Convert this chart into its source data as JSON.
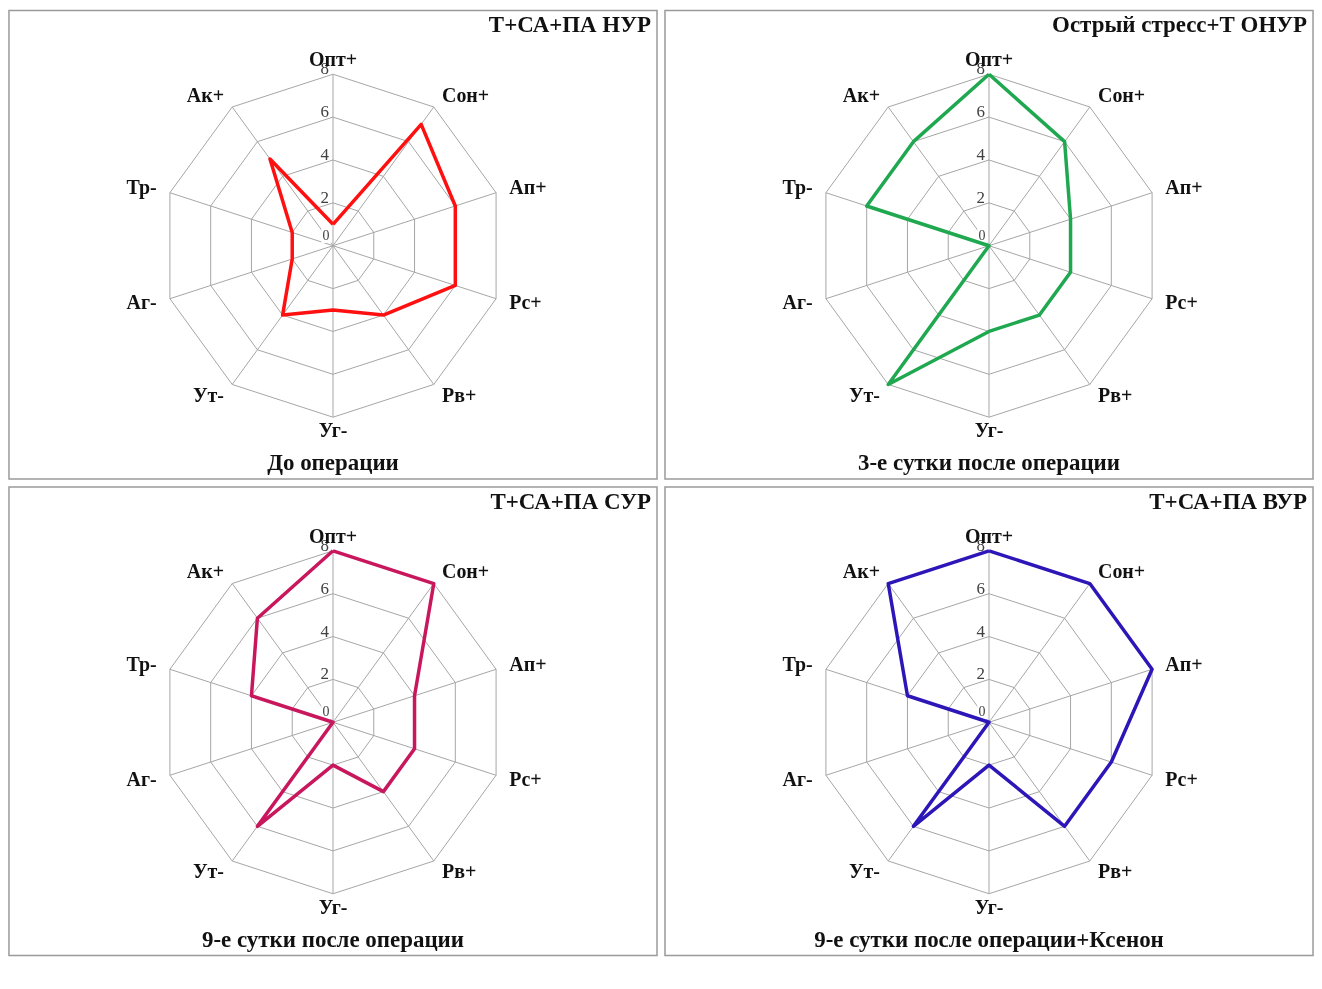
{
  "chart_data": [
    {
      "type": "radar",
      "title": "Т+СА+ПА НУР",
      "annotations": [
        "До операции"
      ],
      "categories": [
        "Опт+",
        "Сон+",
        "Ап+",
        "Рс+",
        "Рв+",
        "Уг-",
        "Ут-",
        "Аг-",
        "Тр-",
        "Ак+"
      ],
      "ylim": [
        0,
        8
      ],
      "yticks": [
        0,
        2,
        4,
        6,
        8
      ],
      "grid": true,
      "series": [
        {
          "color": "#ff1010",
          "values": [
            1,
            7,
            6,
            6,
            4,
            3,
            4,
            2,
            2,
            5
          ]
        }
      ]
    },
    {
      "type": "radar",
      "title": "Острый стресс+Т ОНУР",
      "annotations": [
        "3-е сутки после операции"
      ],
      "categories": [
        "Опт+",
        "Сон+",
        "Ап+",
        "Рс+",
        "Рв+",
        "Уг-",
        "Ут-",
        "Аг-",
        "Тр-",
        "Ак+"
      ],
      "ylim": [
        0,
        8
      ],
      "yticks": [
        0,
        2,
        4,
        6,
        8
      ],
      "grid": true,
      "series": [
        {
          "color": "#1fa84f",
          "values": [
            8,
            6,
            4,
            4,
            4,
            4,
            8,
            0,
            6,
            6
          ]
        }
      ]
    },
    {
      "type": "radar",
      "title": "Т+СА+ПА СУР",
      "annotations": [
        "9-е сутки после операции"
      ],
      "categories": [
        "Опт+",
        "Сон+",
        "Ап+",
        "Рс+",
        "Рв+",
        "Уг-",
        "Ут-",
        "Аг-",
        "Тр-",
        "Ак+"
      ],
      "ylim": [
        0,
        8
      ],
      "yticks": [
        0,
        2,
        4,
        6,
        8
      ],
      "grid": true,
      "series": [
        {
          "color": "#c8175d",
          "values": [
            8,
            8,
            4,
            4,
            4,
            2,
            6,
            0,
            4,
            6
          ]
        }
      ]
    },
    {
      "type": "radar",
      "title": "Т+СА+ПА ВУР",
      "annotations": [
        "9-е сутки после операции+Ксенон"
      ],
      "categories": [
        "Опт+",
        "Сон+",
        "Ап+",
        "Рс+",
        "Рв+",
        "Уг-",
        "Ут-",
        "Аг-",
        "Тр-",
        "Ак+"
      ],
      "ylim": [
        0,
        8
      ],
      "yticks": [
        0,
        2,
        4,
        6,
        8
      ],
      "grid": true,
      "series": [
        {
          "color": "#2d16b8",
          "values": [
            8,
            8,
            8,
            6,
            6,
            2,
            6,
            0,
            4,
            8
          ]
        }
      ]
    }
  ]
}
